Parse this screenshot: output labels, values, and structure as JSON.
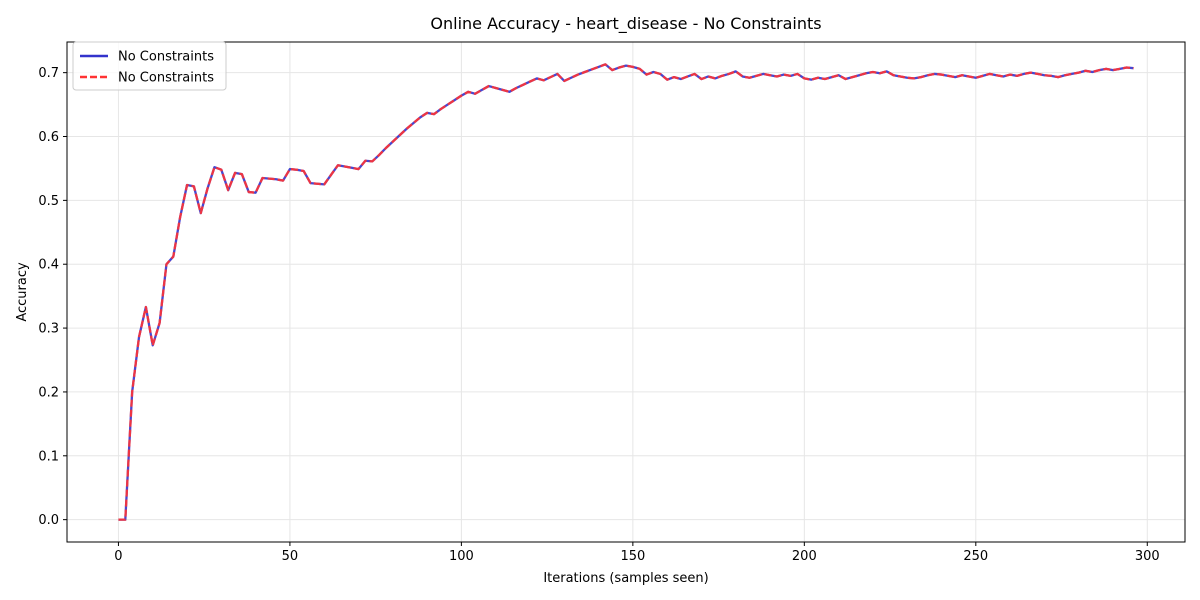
{
  "chart_data": {
    "type": "line",
    "title": "Online Accuracy - heart_disease - No Constraints",
    "xlabel": "Iterations (samples seen)",
    "ylabel": "Accuracy",
    "xlim": [
      -15,
      311
    ],
    "ylim": [
      -0.035,
      0.748
    ],
    "xticks": [
      0,
      50,
      100,
      150,
      200,
      250,
      300
    ],
    "yticks": [
      0.0,
      0.1,
      0.2,
      0.3,
      0.4,
      0.5,
      0.6,
      0.7
    ],
    "xtick_labels": [
      "0",
      "50",
      "100",
      "150",
      "200",
      "250",
      "300"
    ],
    "ytick_labels": [
      "0.0",
      "0.1",
      "0.2",
      "0.3",
      "0.4",
      "0.5",
      "0.6",
      "0.7"
    ],
    "grid": true,
    "legend_position": "top-left",
    "x": [
      0,
      2,
      4,
      6,
      8,
      10,
      12,
      14,
      16,
      18,
      20,
      22,
      24,
      26,
      28,
      30,
      32,
      34,
      36,
      38,
      40,
      42,
      44,
      46,
      48,
      50,
      52,
      54,
      56,
      58,
      60,
      62,
      64,
      66,
      68,
      70,
      72,
      74,
      76,
      78,
      80,
      82,
      84,
      86,
      88,
      90,
      92,
      94,
      96,
      98,
      100,
      102,
      104,
      106,
      108,
      110,
      112,
      114,
      116,
      118,
      120,
      122,
      124,
      126,
      128,
      130,
      132,
      134,
      136,
      138,
      140,
      142,
      144,
      146,
      148,
      150,
      152,
      154,
      156,
      158,
      160,
      162,
      164,
      166,
      168,
      170,
      172,
      174,
      176,
      178,
      180,
      182,
      184,
      186,
      188,
      190,
      192,
      194,
      196,
      198,
      200,
      202,
      204,
      206,
      208,
      210,
      212,
      214,
      216,
      218,
      220,
      222,
      224,
      226,
      228,
      230,
      232,
      234,
      236,
      238,
      240,
      242,
      244,
      246,
      248,
      250,
      252,
      254,
      256,
      258,
      260,
      262,
      264,
      266,
      268,
      270,
      272,
      274,
      276,
      278,
      280,
      282,
      284,
      286,
      288,
      290,
      292,
      294,
      296
    ],
    "series": [
      {
        "name": "No Constraints",
        "color": "#3333cc",
        "style": "solid",
        "values": [
          0.0,
          0.0,
          0.2,
          0.286,
          0.333,
          0.273,
          0.308,
          0.4,
          0.412,
          0.474,
          0.524,
          0.522,
          0.48,
          0.519,
          0.552,
          0.548,
          0.516,
          0.543,
          0.541,
          0.513,
          0.512,
          0.535,
          0.534,
          0.533,
          0.531,
          0.549,
          0.548,
          0.546,
          0.527,
          0.526,
          0.525,
          0.54,
          0.555,
          0.553,
          0.551,
          0.549,
          0.562,
          0.561,
          0.571,
          0.582,
          0.592,
          0.602,
          0.612,
          0.621,
          0.63,
          0.637,
          0.635,
          0.643,
          0.65,
          0.657,
          0.664,
          0.67,
          0.667,
          0.673,
          0.679,
          0.676,
          0.673,
          0.67,
          0.676,
          0.681,
          0.686,
          0.691,
          0.688,
          0.693,
          0.698,
          0.687,
          0.692,
          0.697,
          0.701,
          0.705,
          0.709,
          0.713,
          0.704,
          0.708,
          0.711,
          0.709,
          0.706,
          0.697,
          0.701,
          0.698,
          0.689,
          0.693,
          0.69,
          0.694,
          0.698,
          0.69,
          0.694,
          0.691,
          0.695,
          0.698,
          0.702,
          0.694,
          0.692,
          0.695,
          0.698,
          0.696,
          0.694,
          0.697,
          0.695,
          0.698,
          0.691,
          0.689,
          0.692,
          0.69,
          0.693,
          0.696,
          0.69,
          0.693,
          0.696,
          0.699,
          0.701,
          0.699,
          0.702,
          0.696,
          0.694,
          0.692,
          0.691,
          0.693,
          0.696,
          0.698,
          0.697,
          0.695,
          0.693,
          0.696,
          0.694,
          0.692,
          0.695,
          0.698,
          0.696,
          0.694,
          0.697,
          0.695,
          0.698,
          0.7,
          0.698,
          0.696,
          0.695,
          0.693,
          0.696,
          0.698,
          0.7,
          0.703,
          0.701,
          0.704,
          0.706,
          0.704,
          0.706,
          0.708,
          0.707
        ]
      },
      {
        "name": "No Constraints",
        "color": "#ff3333",
        "style": "dashed",
        "values": [
          0.0,
          0.0,
          0.2,
          0.286,
          0.333,
          0.273,
          0.308,
          0.4,
          0.412,
          0.474,
          0.524,
          0.522,
          0.48,
          0.519,
          0.552,
          0.548,
          0.516,
          0.543,
          0.541,
          0.513,
          0.512,
          0.535,
          0.534,
          0.533,
          0.531,
          0.549,
          0.548,
          0.546,
          0.527,
          0.526,
          0.525,
          0.54,
          0.555,
          0.553,
          0.551,
          0.549,
          0.562,
          0.561,
          0.571,
          0.582,
          0.592,
          0.602,
          0.612,
          0.621,
          0.63,
          0.637,
          0.635,
          0.643,
          0.65,
          0.657,
          0.664,
          0.67,
          0.667,
          0.673,
          0.679,
          0.676,
          0.673,
          0.67,
          0.676,
          0.681,
          0.686,
          0.691,
          0.688,
          0.693,
          0.698,
          0.687,
          0.692,
          0.697,
          0.701,
          0.705,
          0.709,
          0.713,
          0.704,
          0.708,
          0.711,
          0.709,
          0.706,
          0.697,
          0.701,
          0.698,
          0.689,
          0.693,
          0.69,
          0.694,
          0.698,
          0.69,
          0.694,
          0.691,
          0.695,
          0.698,
          0.702,
          0.694,
          0.692,
          0.695,
          0.698,
          0.696,
          0.694,
          0.697,
          0.695,
          0.698,
          0.691,
          0.689,
          0.692,
          0.69,
          0.693,
          0.696,
          0.69,
          0.693,
          0.696,
          0.699,
          0.701,
          0.699,
          0.702,
          0.696,
          0.694,
          0.692,
          0.691,
          0.693,
          0.696,
          0.698,
          0.697,
          0.695,
          0.693,
          0.696,
          0.694,
          0.692,
          0.695,
          0.698,
          0.696,
          0.694,
          0.697,
          0.695,
          0.698,
          0.7,
          0.698,
          0.696,
          0.695,
          0.693,
          0.696,
          0.698,
          0.7,
          0.703,
          0.701,
          0.704,
          0.706,
          0.704,
          0.706,
          0.708,
          0.707
        ]
      }
    ]
  }
}
